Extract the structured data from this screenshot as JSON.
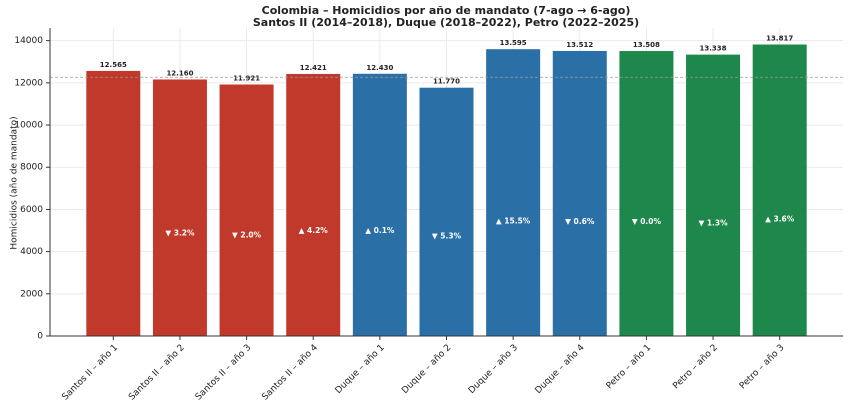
{
  "chart_data": {
    "type": "bar",
    "title": "Colombia – Homicidios por año de mandato (7-ago → 6-ago)",
    "subtitle": "Santos II (2014–2018), Duque (2018–2022), Petro (2022–2025)",
    "y_label": "Homicidios (año de mandato)",
    "categories": [
      "Santos II – año 1",
      "Santos II – año 2",
      "Santos II – año 3",
      "Santos II – año 4",
      "Duque – año 1",
      "Duque – año 2",
      "Duque – año 3",
      "Duque – año 4",
      "Petro – año 1",
      "Petro – año 2",
      "Petro – año 3"
    ],
    "values": [
      12565,
      12160,
      11921,
      12421,
      12430,
      11770,
      13595,
      13512,
      13508,
      13338,
      13817
    ],
    "value_labels": [
      "12.565",
      "12.160",
      "11.921",
      "12.421",
      "12.430",
      "11.770",
      "13.595",
      "13.512",
      "13.508",
      "13.338",
      "13.817"
    ],
    "annotations": [
      null,
      "▼ 3.2%",
      "▼ 2.0%",
      "▲ 4.2%",
      "▲ 0.1%",
      "▼ 5.3%",
      "▲ 15.5%",
      "▼ 0.6%",
      "▼ 0.0%",
      "▼ 1.3%",
      "▲ 3.6%"
    ],
    "colors": [
      "#c0392b",
      "#c0392b",
      "#c0392b",
      "#c0392b",
      "#2a6fa6",
      "#2a6fa6",
      "#2a6fa6",
      "#2a6fa6",
      "#1e874b",
      "#1e874b",
      "#1e874b"
    ],
    "reference_line": 12267,
    "ylim": [
      0,
      14600
    ],
    "yticks": [
      0,
      2000,
      4000,
      6000,
      8000,
      10000,
      12000,
      14000
    ],
    "grid": true
  }
}
